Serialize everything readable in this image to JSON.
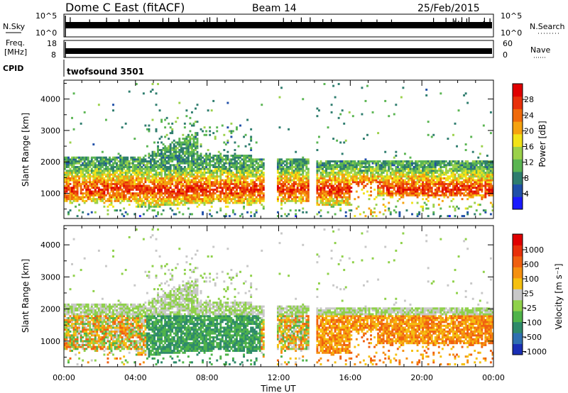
{
  "header": {
    "station": "Dome C East (fitACF)",
    "beam": "Beam 14",
    "date": "25/Feb/2015"
  },
  "noise_panel": {
    "left_label": "N.Sky",
    "right_label": "N.Search",
    "top_tick": "10^5",
    "bottom_tick": "10^0"
  },
  "freq_panel": {
    "left_label_1": "Freq.",
    "left_label_2": "[MHz]",
    "right_label": "Nave",
    "left_ticks": [
      "18",
      "8"
    ],
    "right_ticks": [
      "60",
      "0"
    ]
  },
  "cpid_panel": {
    "label": "CPID",
    "program": "twofsound 3501"
  },
  "chart_data": [
    {
      "type": "heatmap",
      "name": "power",
      "ylabel": "Slant Range [km]",
      "xlabel": "",
      "xlim": [
        0,
        24
      ],
      "ylim": [
        200,
        4600
      ],
      "yticks": [
        1000,
        2000,
        3000,
        4000
      ],
      "colorbar": {
        "label": "Power [dB]",
        "range": [
          0,
          32
        ],
        "ticks": [
          "4",
          "8",
          "12",
          "16",
          "20",
          "24",
          "28"
        ],
        "colors": [
          "#1a1aff",
          "#1f4fa8",
          "#2e7d6e",
          "#5ab552",
          "#9bd14a",
          "#f2e318",
          "#f5a20f",
          "#f06a0a",
          "#e8300a",
          "#e00000"
        ]
      }
    },
    {
      "type": "heatmap",
      "name": "velocity",
      "ylabel": "Slant Range [km]",
      "xlabel": "Time UT",
      "xlim": [
        0,
        24
      ],
      "ylim": [
        200,
        4600
      ],
      "yticks": [
        1000,
        2000,
        3000,
        4000
      ],
      "xticks": [
        "00:00",
        "04:00",
        "08:00",
        "12:00",
        "16:00",
        "20:00",
        "00:00"
      ],
      "colorbar": {
        "label": "Velocity [m s⁻¹]",
        "ticks": [
          "1000",
          "500",
          "100",
          "25",
          "-25",
          "-100",
          "-500",
          "-1000"
        ],
        "colors": [
          "#1a2fb5",
          "#2f6fb0",
          "#2e8a6a",
          "#4fb34a",
          "#8fd14a",
          "#c8c8c8",
          "#f5c010",
          "#f59010",
          "#f06010",
          "#e8300a",
          "#e00000"
        ]
      }
    }
  ]
}
